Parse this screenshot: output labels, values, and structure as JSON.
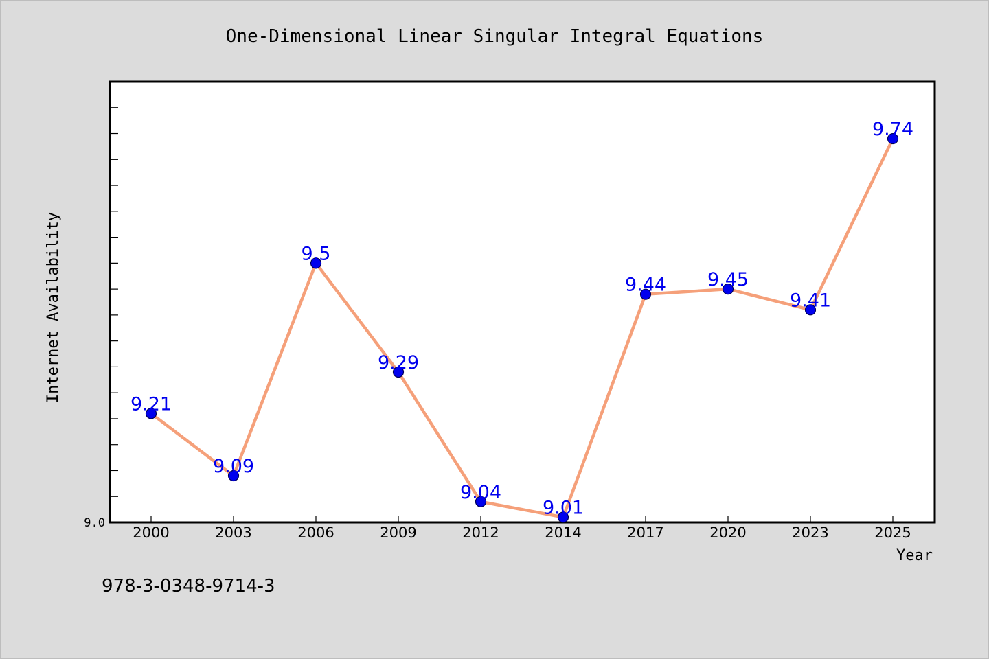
{
  "chart_data": {
    "type": "line",
    "title": "One-Dimensional Linear Singular Integral Equations",
    "xlabel": "Year",
    "ylabel": "Internet Availability",
    "categories": [
      "2000",
      "2003",
      "2006",
      "2009",
      "2012",
      "2014",
      "2017",
      "2020",
      "2023",
      "2025"
    ],
    "series": [
      {
        "values": [
          9.21,
          9.09,
          9.5,
          9.29,
          9.04,
          9.01,
          9.44,
          9.45,
          9.41,
          9.74
        ],
        "data_labels": [
          "9.21",
          "9.09",
          "9.5",
          "9.29",
          "9.04",
          "9.01",
          "9.44",
          "9.45",
          "9.41",
          "9.74"
        ]
      }
    ],
    "y_tick_labels": [
      "9.0"
    ],
    "ylim": [
      9.0,
      9.85
    ],
    "grid": false,
    "line_color": "#f5a07a",
    "marker_color": "#0000ee",
    "label_color": "#0000ee"
  },
  "footer_text": "978-3-0348-9714-3"
}
